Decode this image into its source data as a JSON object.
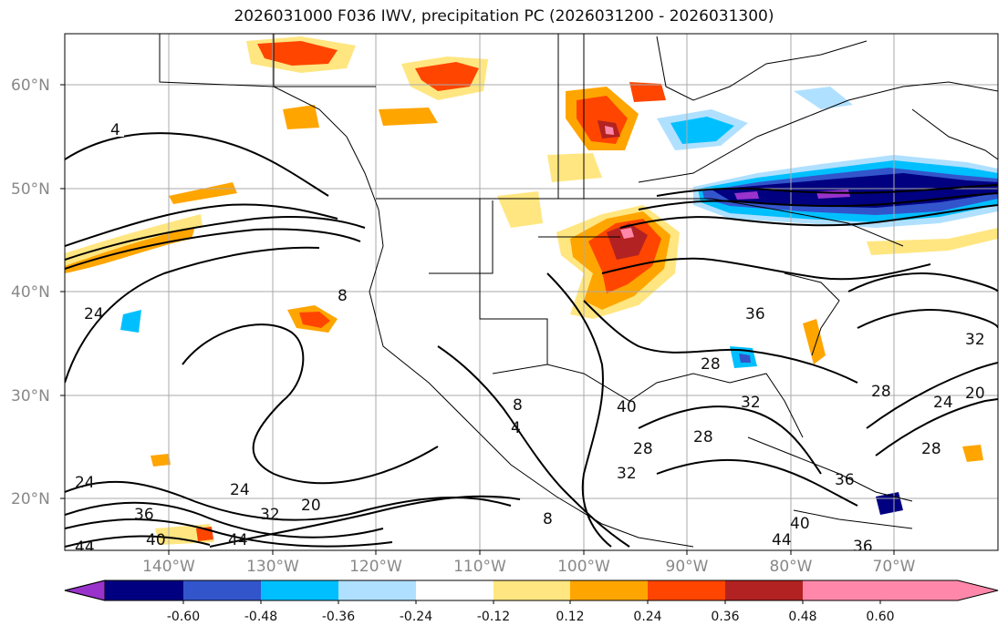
{
  "title": "2026031000 F036 IWV, precipitation PC (2026031200 - 2026031300)",
  "lat_labels": [
    "60°N",
    "50°N",
    "40°N",
    "30°N",
    "20°N"
  ],
  "lon_labels": [
    "140°W",
    "130°W",
    "120°W",
    "110°W",
    "100°W",
    "90°W",
    "80°W",
    "70°W"
  ],
  "colorbar": {
    "ticks": [
      "-0.60",
      "-0.48",
      "-0.36",
      "-0.24",
      "-0.12",
      "0.12",
      "0.24",
      "0.36",
      "0.48",
      "0.60"
    ],
    "colors": [
      "#9933cc",
      "#000080",
      "#3355cc",
      "#00bfff",
      "#b0e0ff",
      "#ffffff",
      "#ffe680",
      "#ffa500",
      "#ff4500",
      "#b22222",
      "#ff88aa"
    ]
  },
  "contour_labels": [
    "4",
    "24",
    "24",
    "36",
    "40",
    "44",
    "24",
    "32",
    "20",
    "44",
    "8",
    "4",
    "8",
    "36",
    "28",
    "40",
    "28",
    "32",
    "28",
    "32",
    "36",
    "40",
    "44",
    "36",
    "28",
    "24",
    "20",
    "32",
    "28",
    "8"
  ],
  "colors": {
    "contour": "#000000",
    "grid": "#aaaaaa",
    "frame": "#000000"
  }
}
